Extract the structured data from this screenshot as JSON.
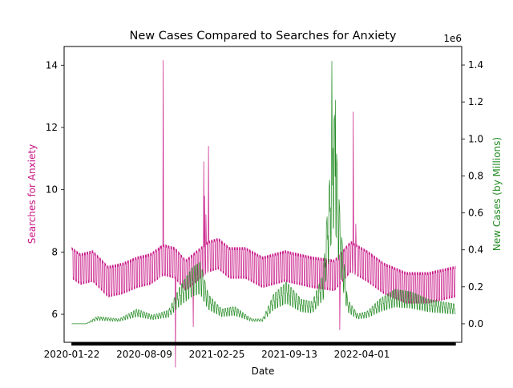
{
  "chart_data": {
    "type": "line",
    "title": "New Cases Compared to Searches for Anxiety",
    "xlabel": "Date",
    "ylabel_left": "Searches for Anxiety",
    "ylabel_right": "New Cases (by Millions)",
    "right_axis_multiplier": "1e6",
    "x_range": [
      "2020-01-01",
      "2023-01-01"
    ],
    "x_ticks": [
      "2020-01-22",
      "2020-08-09",
      "2021-02-25",
      "2021-09-13",
      "2022-04-01"
    ],
    "y_left": {
      "range": [
        5.1,
        14.6
      ],
      "ticks": [
        "6",
        "8",
        "10",
        "12",
        "14"
      ]
    },
    "y_right": {
      "range": [
        -0.1,
        1.5
      ],
      "ticks": [
        "0.0",
        "0.2",
        "0.4",
        "0.6",
        "0.8",
        "1.0",
        "1.2",
        "1.4"
      ]
    },
    "grid": false,
    "colors": {
      "searches": "#c71585",
      "cases": "#228b22"
    },
    "series": [
      {
        "key": "searches",
        "axis": "left",
        "period_days": 7,
        "weekly_amplitude": [
          0.55,
          0.45
        ],
        "base": [
          [
            "2020-01-22",
            7.6
          ],
          [
            "2020-02-15",
            7.4
          ],
          [
            "2020-03-20",
            7.5
          ],
          [
            "2020-05-01",
            7.0
          ],
          [
            "2020-06-10",
            7.1
          ],
          [
            "2020-07-20",
            7.3
          ],
          [
            "2020-08-25",
            7.4
          ],
          [
            "2020-10-01",
            7.7
          ],
          [
            "2020-11-01",
            7.6
          ],
          [
            "2020-12-01",
            7.2
          ],
          [
            "2021-01-01",
            7.5
          ],
          [
            "2021-02-01",
            7.8
          ],
          [
            "2021-03-01",
            7.9
          ],
          [
            "2021-04-01",
            7.6
          ],
          [
            "2021-05-15",
            7.6
          ],
          [
            "2021-07-01",
            7.3
          ],
          [
            "2021-09-01",
            7.5
          ],
          [
            "2021-11-15",
            7.3
          ],
          [
            "2022-01-15",
            7.2
          ],
          [
            "2022-03-01",
            7.8
          ],
          [
            "2022-04-15",
            7.5
          ],
          [
            "2022-06-01",
            7.1
          ],
          [
            "2022-08-01",
            6.8
          ],
          [
            "2022-10-01",
            6.8
          ],
          [
            "2022-12-15",
            7.0
          ]
        ],
        "spikes": [
          [
            "2020-09-30",
            14.15
          ],
          [
            "2020-09-22",
            8.2
          ],
          [
            "2020-11-03",
            4.3
          ],
          [
            "2020-12-22",
            5.6
          ],
          [
            "2021-01-20",
            10.9
          ],
          [
            "2021-01-22",
            9.8
          ],
          [
            "2021-02-02",
            11.4
          ],
          [
            "2021-01-26",
            9.2
          ],
          [
            "2022-01-30",
            5.5
          ],
          [
            "2022-03-08",
            12.5
          ],
          [
            "2022-03-15",
            8.9
          ]
        ]
      },
      {
        "key": "cases",
        "axis": "right",
        "period_days": 7,
        "weekly_amplitude": [
          0.35,
          0.55
        ],
        "base": [
          [
            "2020-01-22",
            0.0
          ],
          [
            "2020-03-01",
            0.0
          ],
          [
            "2020-04-01",
            0.03
          ],
          [
            "2020-05-01",
            0.025
          ],
          [
            "2020-06-01",
            0.02
          ],
          [
            "2020-07-20",
            0.06
          ],
          [
            "2020-09-01",
            0.035
          ],
          [
            "2020-10-15",
            0.055
          ],
          [
            "2020-11-15",
            0.15
          ],
          [
            "2020-12-20",
            0.23
          ],
          [
            "2021-01-10",
            0.25
          ],
          [
            "2021-02-01",
            0.12
          ],
          [
            "2021-03-10",
            0.06
          ],
          [
            "2021-04-15",
            0.07
          ],
          [
            "2021-06-01",
            0.02
          ],
          [
            "2021-07-01",
            0.02
          ],
          [
            "2021-08-01",
            0.12
          ],
          [
            "2021-09-05",
            0.17
          ],
          [
            "2021-10-15",
            0.1
          ],
          [
            "2021-11-15",
            0.09
          ],
          [
            "2021-12-15",
            0.2
          ],
          [
            "2022-01-05",
            0.65
          ],
          [
            "2022-01-15",
            0.85
          ],
          [
            "2022-02-01",
            0.4
          ],
          [
            "2022-02-20",
            0.1
          ],
          [
            "2022-03-20",
            0.04
          ],
          [
            "2022-04-15",
            0.05
          ],
          [
            "2022-05-20",
            0.1
          ],
          [
            "2022-07-01",
            0.14
          ],
          [
            "2022-08-15",
            0.13
          ],
          [
            "2022-10-01",
            0.1
          ],
          [
            "2022-12-15",
            0.08
          ]
        ],
        "spikes": [
          [
            "2022-01-08",
            1.42
          ],
          [
            "2022-01-18",
            1.21
          ],
          [
            "2022-01-11",
            0.95
          ]
        ]
      }
    ]
  }
}
